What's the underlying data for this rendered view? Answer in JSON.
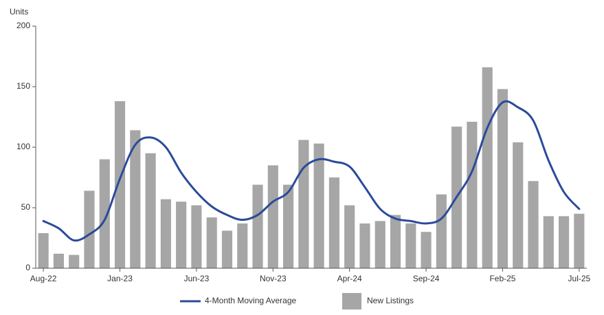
{
  "chart_data": {
    "type": "bar",
    "y_label": "Units",
    "categories": [
      "Aug-22",
      null,
      null,
      null,
      null,
      "Jan-23",
      null,
      null,
      null,
      null,
      "Jun-23",
      null,
      null,
      null,
      null,
      "Nov-23",
      null,
      null,
      null,
      null,
      "Apr-24",
      null,
      null,
      null,
      null,
      "Sep-24",
      null,
      null,
      null,
      null,
      "Feb-25",
      null,
      null,
      null,
      null,
      "Jul-25"
    ],
    "series": [
      {
        "name": "4-Month Moving Average",
        "type": "line",
        "color": "#2b4a9b",
        "values": [
          39,
          33,
          23,
          28,
          40,
          74,
          102,
          108,
          100,
          79,
          63,
          51,
          44,
          40,
          44,
          55,
          63,
          83,
          90,
          88,
          84,
          67,
          49,
          41,
          39,
          37,
          41,
          59,
          80,
          116,
          137,
          133,
          122,
          89,
          63,
          49
        ]
      },
      {
        "name": "New Listings",
        "type": "bar",
        "color": "#a6a6a6",
        "values": [
          29,
          12,
          11,
          64,
          90,
          138,
          114,
          95,
          57,
          55,
          52,
          42,
          31,
          37,
          69,
          85,
          69,
          106,
          103,
          75,
          52,
          37,
          39,
          44,
          37,
          30,
          61,
          117,
          121,
          166,
          148,
          104,
          72,
          43,
          43,
          45
        ]
      }
    ],
    "ylim": [
      0,
      200
    ],
    "yticks": [
      0,
      50,
      100,
      150,
      200
    ],
    "legend": "bottom"
  }
}
